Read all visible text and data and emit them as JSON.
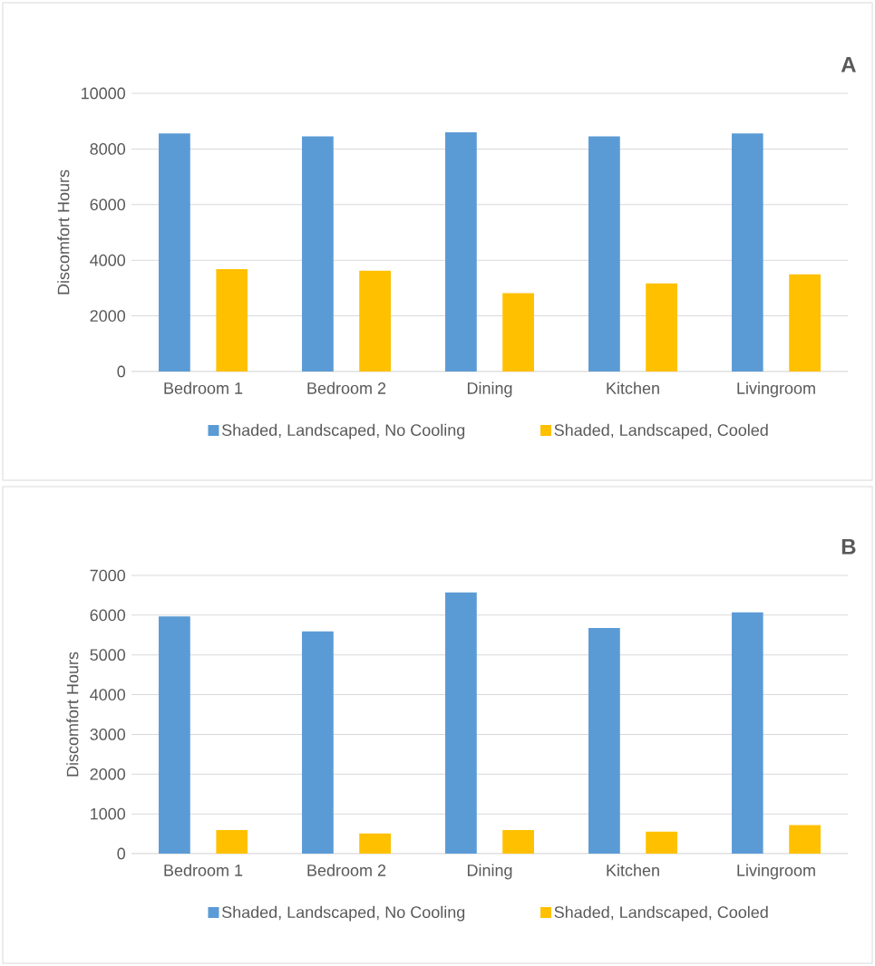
{
  "chart_data": [
    {
      "type": "bar",
      "title": "A",
      "ylabel": "Discomfort Hours",
      "categories": [
        "Bedroom 1",
        "Bedroom 2",
        "Dining",
        "Kitchen",
        "Livingroom"
      ],
      "ylim": [
        0,
        10000
      ],
      "yticks": [
        0,
        2000,
        4000,
        6000,
        8000,
        10000
      ],
      "grid": "y",
      "legend": "bottom",
      "series": [
        {
          "name": "Shaded, Landscaped, No Cooling",
          "color": "#5b9bd5",
          "values": [
            8560,
            8450,
            8600,
            8450,
            8560
          ]
        },
        {
          "name": "Shaded, Landscaped, Cooled",
          "color": "#ffc000",
          "values": [
            3680,
            3620,
            2820,
            3170,
            3490
          ]
        }
      ]
    },
    {
      "type": "bar",
      "title": "B",
      "ylabel": "Discomfort Hours",
      "categories": [
        "Bedroom 1",
        "Bedroom 2",
        "Dining",
        "Kitchen",
        "Livingroom"
      ],
      "ylim": [
        0,
        7000
      ],
      "yticks": [
        0,
        1000,
        2000,
        3000,
        4000,
        5000,
        6000,
        7000
      ],
      "grid": "y",
      "legend": "bottom",
      "series": [
        {
          "name": "Shaded, Landscaped, No Cooling",
          "color": "#5b9bd5",
          "values": [
            5970,
            5590,
            6570,
            5680,
            6070
          ]
        },
        {
          "name": "Shaded, Landscaped, Cooled",
          "color": "#ffc000",
          "values": [
            590,
            510,
            590,
            550,
            720
          ]
        }
      ]
    }
  ]
}
